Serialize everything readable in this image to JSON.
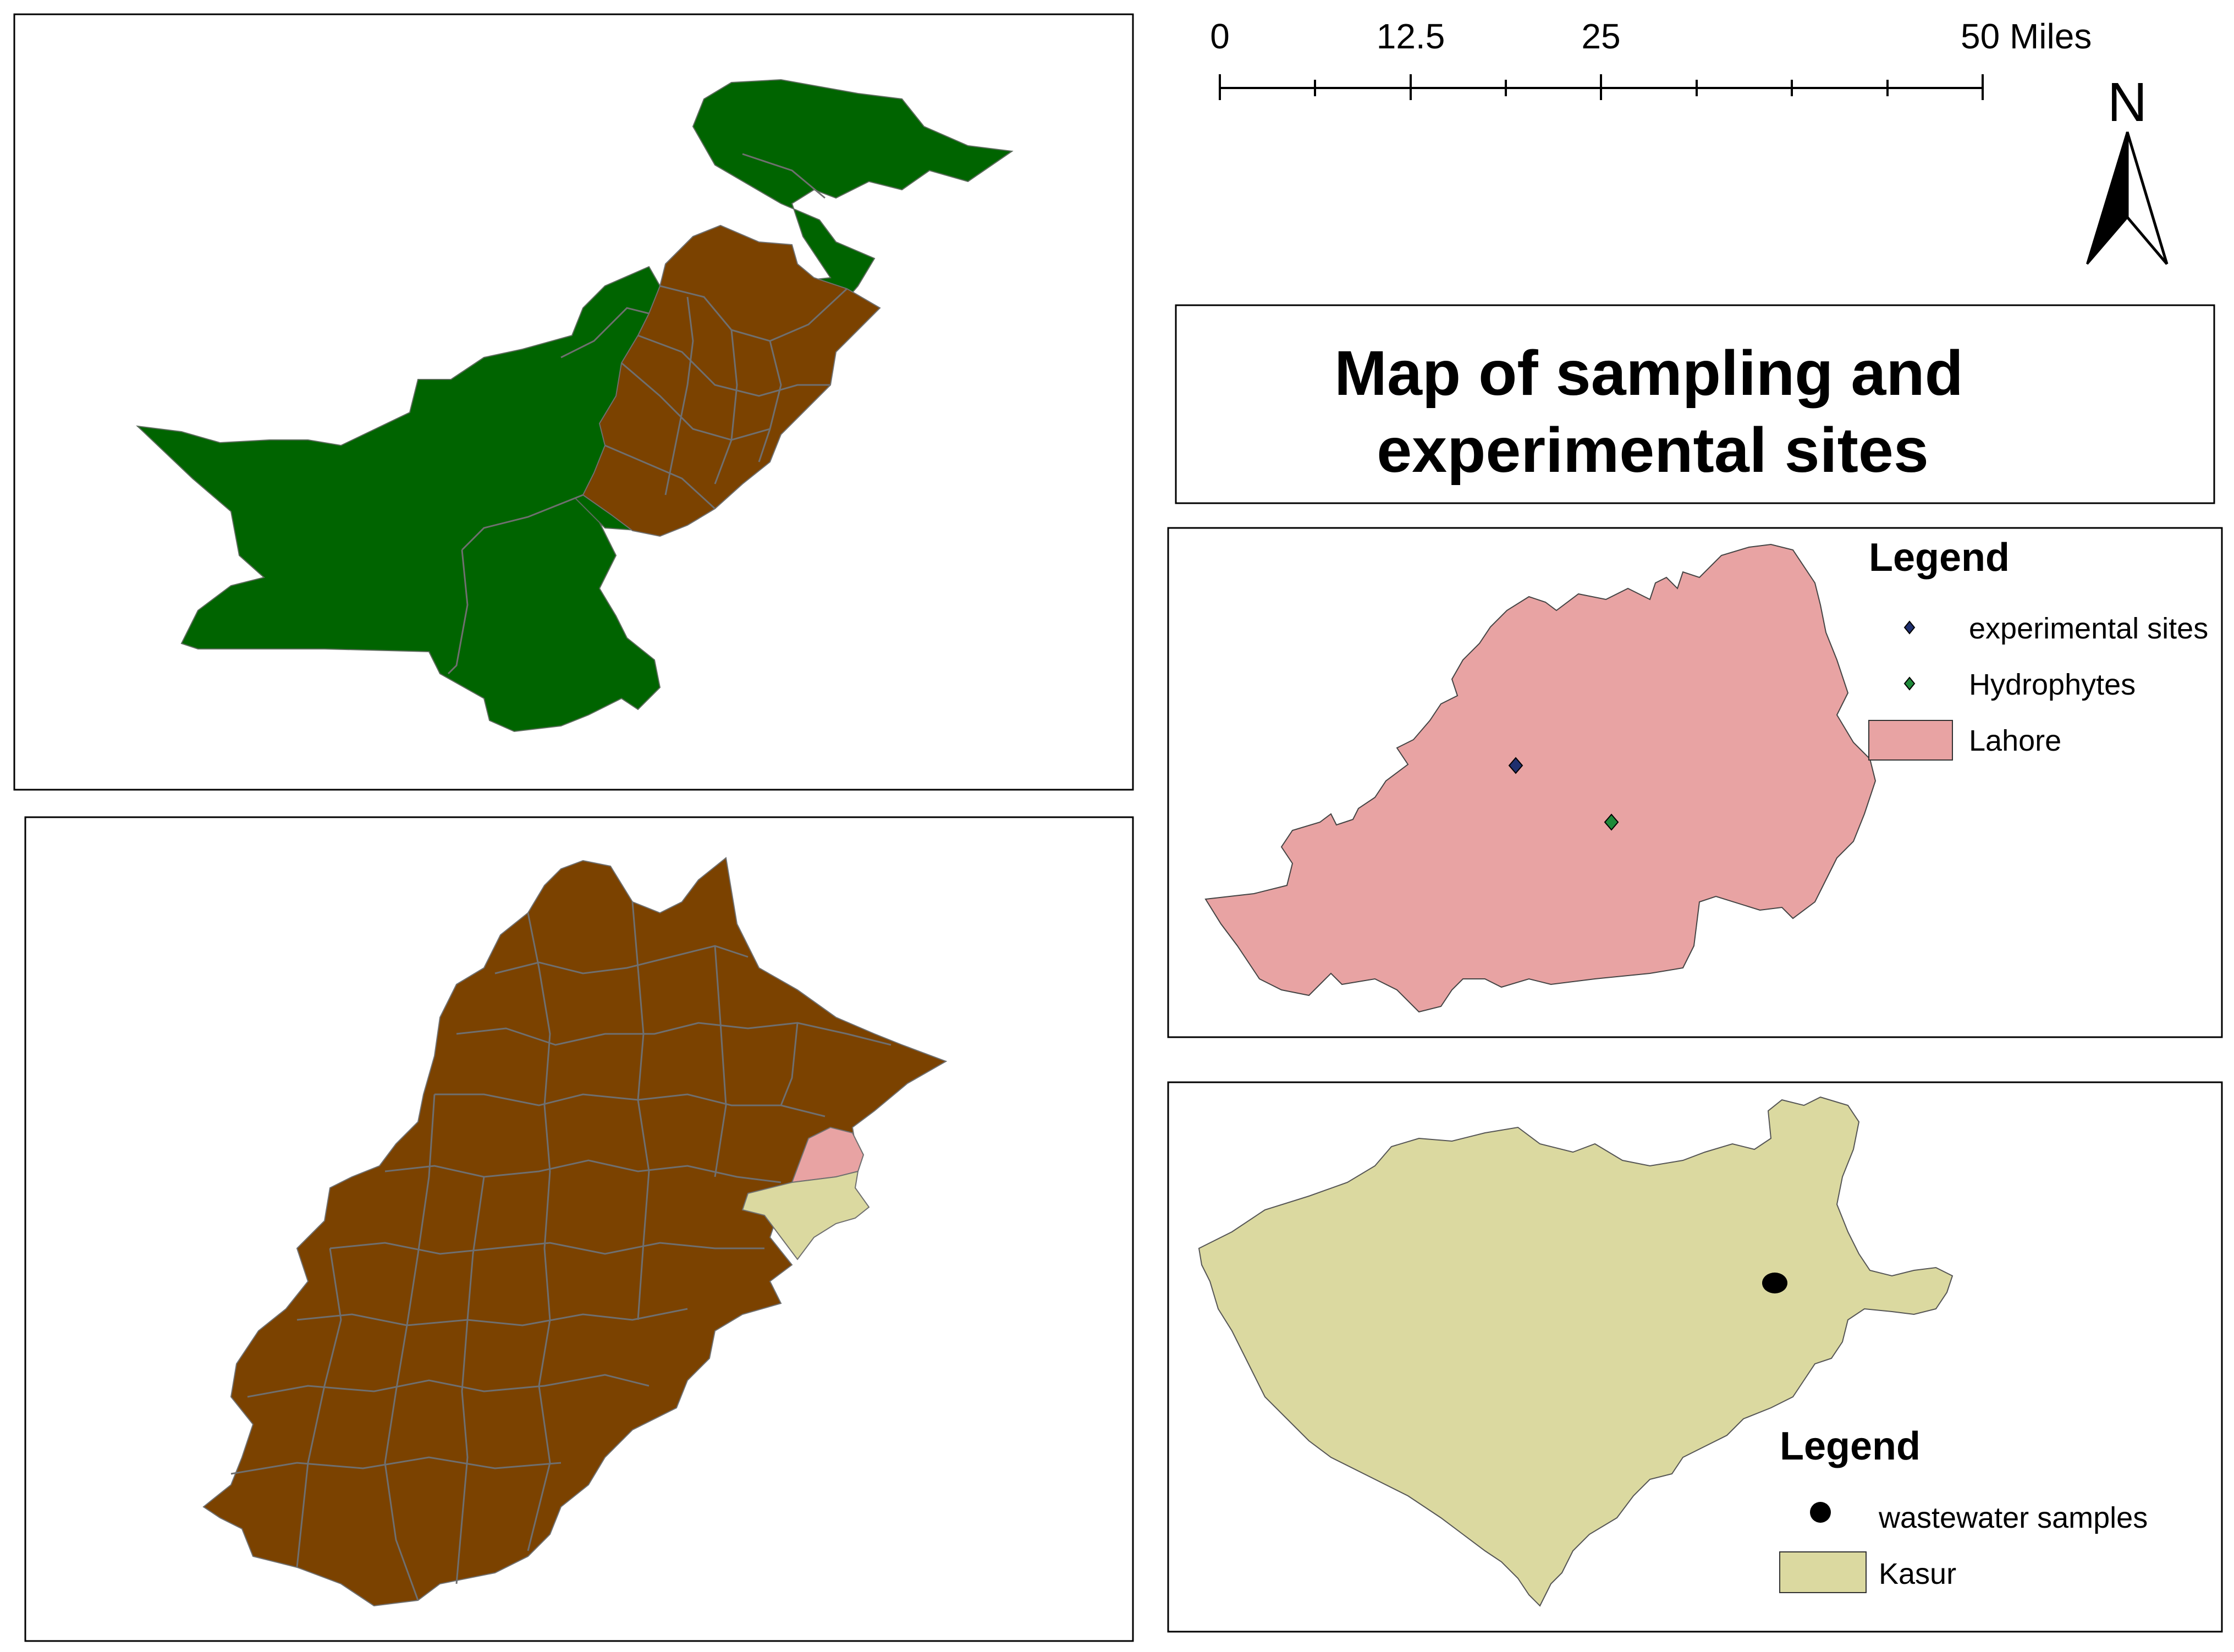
{
  "title": "Map of sampling and experimental sites",
  "title_lines": [
    "Map of sampling and",
    "experimental sites"
  ],
  "scale_bar": {
    "ticks": [
      "0",
      "12.5",
      "25",
      "50 Miles"
    ]
  },
  "north_arrow": {
    "label": "N",
    "icon": "north-arrow-icon"
  },
  "pakistan_panel": {
    "colors": {
      "country": "#006400",
      "punjab": "#7b4200"
    }
  },
  "punjab_panel": {
    "colors": {
      "punjab": "#7b4200",
      "lahore": "#e8a3a3",
      "kasur": "#dbd9a0"
    }
  },
  "lahore_panel": {
    "legend_title": "Legend",
    "items": [
      {
        "label": "experimental sites",
        "symbol": "diamond",
        "color": "#1f2f6e"
      },
      {
        "label": "Hydrophytes",
        "symbol": "diamond",
        "color": "#1f8a3a"
      },
      {
        "label": "Lahore",
        "symbol": "patch",
        "color": "#e8a3a3"
      }
    ]
  },
  "kasur_panel": {
    "legend_title": "Legend",
    "items": [
      {
        "label": "wastewater samples",
        "symbol": "dot",
        "color": "#000000"
      },
      {
        "label": "Kasur",
        "symbol": "patch",
        "color": "#dbd9a0"
      }
    ]
  }
}
